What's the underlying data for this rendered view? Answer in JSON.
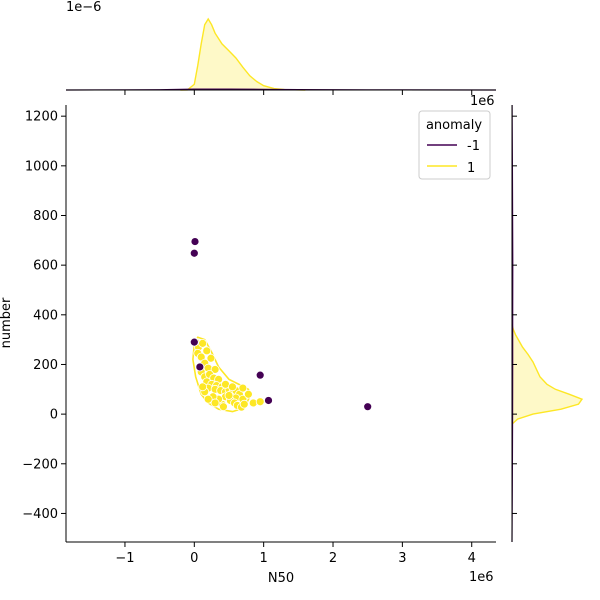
{
  "chart_data": {
    "type": "scatter",
    "xlabel": "N50",
    "ylabel": "number",
    "x_offset_label": "1e6",
    "y_right_offset_label": "1e6",
    "top_marginal_offset_label": "1e−6",
    "xlim": [
      -1.85,
      4.35
    ],
    "ylim": [
      -515,
      1245
    ],
    "xticks": [
      -1,
      0,
      1,
      2,
      3,
      4
    ],
    "xtick_labels": [
      "−1",
      "0",
      "1",
      "2",
      "3",
      "4"
    ],
    "yticks": [
      -400,
      -200,
      0,
      200,
      400,
      600,
      800,
      1000,
      1200
    ],
    "ytick_labels": [
      "−400",
      "−200",
      "0",
      "200",
      "400",
      "600",
      "800",
      "1000",
      "1200"
    ],
    "x_units": "millions",
    "legend": {
      "title": "anomaly",
      "position": "top-right",
      "entries": [
        {
          "label": "-1",
          "color": "#440154"
        },
        {
          "label": "1",
          "color": "#fde725"
        }
      ]
    },
    "series": [
      {
        "name": "-1",
        "color": "#440154",
        "points": [
          {
            "x": 0.01,
            "y": 695
          },
          {
            "x": 0.0,
            "y": 648
          },
          {
            "x": 0.0,
            "y": 290
          },
          {
            "x": 0.08,
            "y": 190
          },
          {
            "x": 0.95,
            "y": 157
          },
          {
            "x": 1.07,
            "y": 55
          },
          {
            "x": 2.5,
            "y": 30
          }
        ]
      },
      {
        "name": "1",
        "color": "#fde725",
        "points": [
          {
            "x": 0.02,
            "y": 290
          },
          {
            "x": 0.06,
            "y": 270
          },
          {
            "x": 0.12,
            "y": 285
          },
          {
            "x": 0.05,
            "y": 245
          },
          {
            "x": 0.1,
            "y": 230
          },
          {
            "x": 0.18,
            "y": 255
          },
          {
            "x": 0.24,
            "y": 225
          },
          {
            "x": 0.15,
            "y": 205
          },
          {
            "x": 0.2,
            "y": 185
          },
          {
            "x": 0.3,
            "y": 180
          },
          {
            "x": 0.1,
            "y": 170
          },
          {
            "x": 0.15,
            "y": 150
          },
          {
            "x": 0.22,
            "y": 160
          },
          {
            "x": 0.28,
            "y": 145
          },
          {
            "x": 0.35,
            "y": 140
          },
          {
            "x": 0.18,
            "y": 130
          },
          {
            "x": 0.25,
            "y": 120
          },
          {
            "x": 0.32,
            "y": 115
          },
          {
            "x": 0.4,
            "y": 110
          },
          {
            "x": 0.2,
            "y": 105
          },
          {
            "x": 0.3,
            "y": 100
          },
          {
            "x": 0.38,
            "y": 95
          },
          {
            "x": 0.45,
            "y": 90
          },
          {
            "x": 0.5,
            "y": 100
          },
          {
            "x": 0.55,
            "y": 85
          },
          {
            "x": 0.6,
            "y": 95
          },
          {
            "x": 0.65,
            "y": 80
          },
          {
            "x": 0.7,
            "y": 105
          },
          {
            "x": 0.6,
            "y": 65
          },
          {
            "x": 0.7,
            "y": 60
          },
          {
            "x": 0.78,
            "y": 80
          },
          {
            "x": 0.85,
            "y": 45
          },
          {
            "x": 0.95,
            "y": 50
          },
          {
            "x": 0.45,
            "y": 70
          },
          {
            "x": 0.52,
            "y": 55
          },
          {
            "x": 0.58,
            "y": 45
          },
          {
            "x": 0.62,
            "y": 35
          },
          {
            "x": 0.68,
            "y": 28
          },
          {
            "x": 0.4,
            "y": 40
          },
          {
            "x": 0.35,
            "y": 60
          },
          {
            "x": 0.27,
            "y": 70
          },
          {
            "x": 0.2,
            "y": 60
          },
          {
            "x": 0.15,
            "y": 90
          },
          {
            "x": 0.12,
            "y": 110
          },
          {
            "x": 0.45,
            "y": 120
          },
          {
            "x": 0.5,
            "y": 75
          },
          {
            "x": 0.55,
            "y": 110
          },
          {
            "x": 0.72,
            "y": 40
          },
          {
            "x": 0.42,
            "y": 30
          },
          {
            "x": 0.3,
            "y": 45
          }
        ]
      }
    ],
    "contour_1": [
      [
        0.0,
        280
      ],
      [
        0.05,
        310
      ],
      [
        0.15,
        300
      ],
      [
        0.25,
        250
      ],
      [
        0.35,
        190
      ],
      [
        0.5,
        140
      ],
      [
        0.68,
        115
      ],
      [
        0.78,
        100
      ],
      [
        0.8,
        70
      ],
      [
        0.72,
        25
      ],
      [
        0.55,
        10
      ],
      [
        0.35,
        20
      ],
      [
        0.2,
        45
      ],
      [
        0.1,
        80
      ],
      [
        0.02,
        150
      ],
      [
        -0.02,
        220
      ],
      [
        0.0,
        280
      ]
    ],
    "top_density_1": [
      [
        -0.2,
        0.0
      ],
      [
        -0.1,
        0.002
      ],
      [
        0.0,
        0.08
      ],
      [
        0.05,
        0.35
      ],
      [
        0.1,
        0.65
      ],
      [
        0.15,
        0.92
      ],
      [
        0.2,
        1.0
      ],
      [
        0.25,
        0.92
      ],
      [
        0.3,
        0.8
      ],
      [
        0.4,
        0.65
      ],
      [
        0.5,
        0.55
      ],
      [
        0.6,
        0.45
      ],
      [
        0.7,
        0.32
      ],
      [
        0.8,
        0.2
      ],
      [
        0.9,
        0.12
      ],
      [
        1.0,
        0.06
      ],
      [
        1.15,
        0.02
      ],
      [
        1.3,
        0.005
      ],
      [
        1.6,
        0.0
      ]
    ],
    "top_density_neg1": [
      [
        -1.85,
        0.0
      ],
      [
        -0.5,
        0.004
      ],
      [
        0.0,
        0.012
      ],
      [
        0.5,
        0.012
      ],
      [
        1.0,
        0.01
      ],
      [
        1.5,
        0.006
      ],
      [
        2.0,
        0.004
      ],
      [
        2.5,
        0.003
      ],
      [
        3.0,
        0.001
      ],
      [
        4.35,
        0.0
      ]
    ],
    "right_density_1": [
      [
        -40,
        0.0
      ],
      [
        -20,
        0.08
      ],
      [
        0,
        0.3
      ],
      [
        20,
        0.7
      ],
      [
        40,
        0.95
      ],
      [
        60,
        1.0
      ],
      [
        80,
        0.82
      ],
      [
        100,
        0.62
      ],
      [
        120,
        0.5
      ],
      [
        150,
        0.4
      ],
      [
        180,
        0.35
      ],
      [
        210,
        0.3
      ],
      [
        240,
        0.23
      ],
      [
        270,
        0.15
      ],
      [
        300,
        0.09
      ],
      [
        320,
        0.05
      ],
      [
        340,
        0.02
      ],
      [
        360,
        0.0
      ]
    ],
    "right_density_neg1": [
      [
        -515,
        0.0
      ],
      [
        -300,
        0.004
      ],
      [
        0,
        0.008
      ],
      [
        200,
        0.01
      ],
      [
        400,
        0.01
      ],
      [
        600,
        0.012
      ],
      [
        800,
        0.009
      ],
      [
        1000,
        0.005
      ],
      [
        1245,
        0.002
      ]
    ]
  }
}
